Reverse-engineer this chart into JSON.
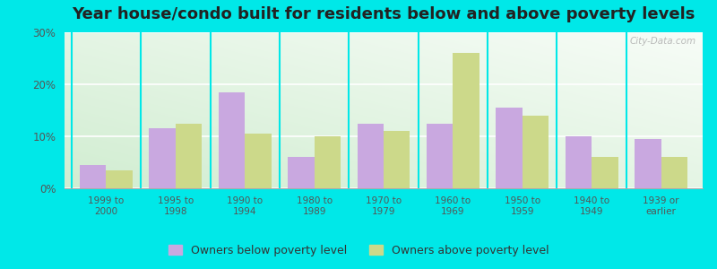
{
  "title": "Year house/condo built for residents below and above poverty levels",
  "categories": [
    "1999 to\n2000",
    "1995 to\n1998",
    "1990 to\n1994",
    "1980 to\n1989",
    "1970 to\n1979",
    "1960 to\n1969",
    "1950 to\n1959",
    "1940 to\n1949",
    "1939 or\nearlier"
  ],
  "below_poverty": [
    4.5,
    11.5,
    18.5,
    6.0,
    12.5,
    12.5,
    15.5,
    10.0,
    9.5
  ],
  "above_poverty": [
    3.5,
    12.5,
    10.5,
    10.0,
    11.0,
    26.0,
    14.0,
    6.0,
    6.0
  ],
  "below_color": "#c9a8e0",
  "above_color": "#ccd98a",
  "below_label": "Owners below poverty level",
  "above_label": "Owners above poverty level",
  "ylim": [
    0,
    30
  ],
  "yticks": [
    0,
    10,
    20,
    30
  ],
  "yticklabels": [
    "0%",
    "10%",
    "20%",
    "30%"
  ],
  "outer_bg": "#00e8e8",
  "title_fontsize": 13,
  "bar_width": 0.38,
  "tick_label_color": "#555555",
  "watermark": "City-Data.com"
}
